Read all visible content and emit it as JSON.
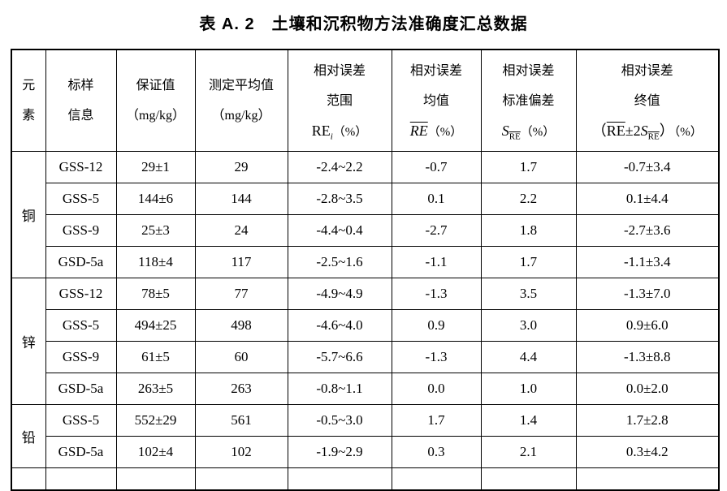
{
  "page": {
    "title": "表 A. 2　土壤和沉积物方法准确度汇总数据"
  },
  "table": {
    "headers": {
      "element": {
        "line1": "元",
        "line2": "素"
      },
      "sample": {
        "line1": "标样",
        "line2": "信息"
      },
      "certified": {
        "line1": "保证值",
        "line2": "（mg/kg）"
      },
      "measured": {
        "line1": "测定平均值",
        "line2": "（mg/kg）"
      },
      "re_range": {
        "line1": "相对误差",
        "line2": "范围",
        "formula_base": "RE",
        "formula_sub": "i",
        "formula_unit": "（%）"
      },
      "re_mean": {
        "line1": "相对误差",
        "line2": "均值",
        "formula_base": "RE",
        "formula_unit": "（%）"
      },
      "re_sd": {
        "line1": "相对误差",
        "line2": "标准偏差",
        "formula_base": "S",
        "formula_sub": "RE",
        "formula_unit": "（%）"
      },
      "re_final": {
        "line1": "相对误差",
        "line2": "终值",
        "formula_open": "（",
        "formula_re": "RE",
        "formula_pm": "±2",
        "formula_s": "S",
        "formula_s_sub": "RE",
        "formula_close": "）",
        "formula_unit": "（%）"
      }
    },
    "groups": [
      {
        "element": "铜",
        "rows": [
          {
            "sample": "GSS-12",
            "certified": "29±1",
            "measured": "29",
            "range": "-2.4~2.2",
            "mean": "-0.7",
            "sd": "1.7",
            "final": "-0.7±3.4"
          },
          {
            "sample": "GSS-5",
            "certified": "144±6",
            "measured": "144",
            "range": "-2.8~3.5",
            "mean": "0.1",
            "sd": "2.2",
            "final": "0.1±4.4"
          },
          {
            "sample": "GSS-9",
            "certified": "25±3",
            "measured": "24",
            "range": "-4.4~0.4",
            "mean": "-2.7",
            "sd": "1.8",
            "final": "-2.7±3.6"
          },
          {
            "sample": "GSD-5a",
            "certified": "118±4",
            "measured": "117",
            "range": "-2.5~1.6",
            "mean": "-1.1",
            "sd": "1.7",
            "final": "-1.1±3.4"
          }
        ]
      },
      {
        "element": "锌",
        "rows": [
          {
            "sample": "GSS-12",
            "certified": "78±5",
            "measured": "77",
            "range": "-4.9~4.9",
            "mean": "-1.3",
            "sd": "3.5",
            "final": "-1.3±7.0"
          },
          {
            "sample": "GSS-5",
            "certified": "494±25",
            "measured": "498",
            "range": "-4.6~4.0",
            "mean": "0.9",
            "sd": "3.0",
            "final": "0.9±6.0"
          },
          {
            "sample": "GSS-9",
            "certified": "61±5",
            "measured": "60",
            "range": "-5.7~6.6",
            "mean": "-1.3",
            "sd": "4.4",
            "final": "-1.3±8.8"
          },
          {
            "sample": "GSD-5a",
            "certified": "263±5",
            "measured": "263",
            "range": "-0.8~1.1",
            "mean": "0.0",
            "sd": "1.0",
            "final": "0.0±2.0"
          }
        ]
      },
      {
        "element": "铅",
        "rows": [
          {
            "sample": "GSS-5",
            "certified": "552±29",
            "measured": "561",
            "range": "-0.5~3.0",
            "mean": "1.7",
            "sd": "1.4",
            "final": "1.7±2.8"
          },
          {
            "sample": "GSD-5a",
            "certified": "102±4",
            "measured": "102",
            "range": "-1.9~2.9",
            "mean": "0.3",
            "sd": "2.1",
            "final": "0.3±4.2"
          }
        ]
      }
    ]
  }
}
